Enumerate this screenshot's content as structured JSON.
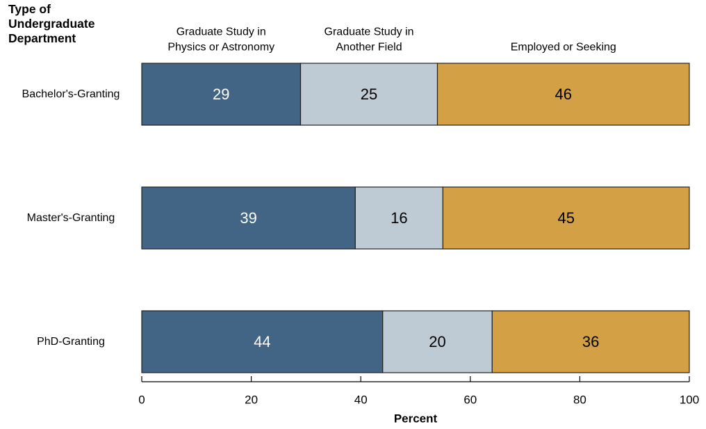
{
  "chart_data": {
    "type": "bar",
    "orientation": "horizontal",
    "stacked": true,
    "y_axis_title_lines": [
      "Type of",
      "Undergraduate",
      "Department"
    ],
    "xlabel": "Percent",
    "xlim": [
      0,
      100
    ],
    "xticks": [
      0,
      20,
      40,
      60,
      80,
      100
    ],
    "categories": [
      "Bachelor's-Granting",
      "Master's-Granting",
      "PhD-Granting"
    ],
    "series": [
      {
        "name": "Graduate Study in Physics or Astronomy",
        "label_lines": [
          "Graduate Study in",
          "Physics or Astronomy"
        ],
        "values": [
          29,
          39,
          44
        ],
        "color": "#426585",
        "text_color": "#ffffff"
      },
      {
        "name": "Graduate Study in Another Field",
        "label_lines": [
          "Graduate Study in",
          "Another Field"
        ],
        "values": [
          25,
          16,
          20
        ],
        "color": "#bfcbd4",
        "text_color": "#000000"
      },
      {
        "name": "Employed or Seeking",
        "label_lines": [
          "Employed or Seeking"
        ],
        "values": [
          46,
          45,
          36
        ],
        "color": "#d4a046",
        "text_color": "#000000"
      }
    ],
    "grid": false,
    "legend": "top, column headers above bars"
  }
}
